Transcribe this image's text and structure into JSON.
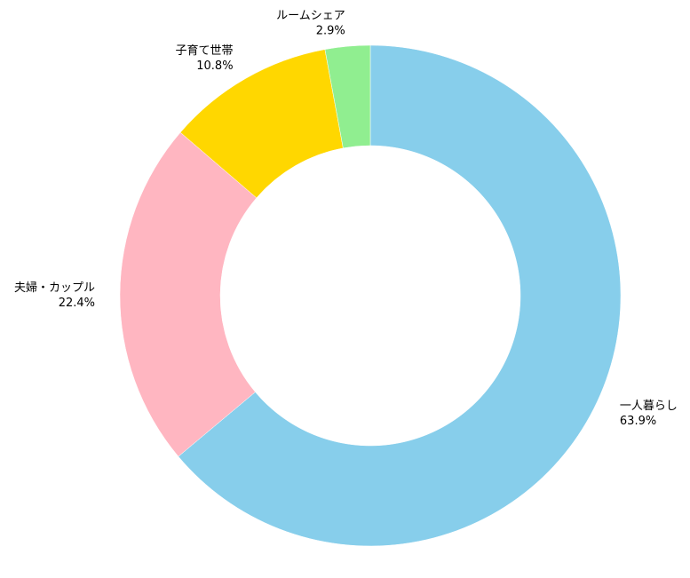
{
  "chart_data": {
    "type": "pie",
    "donut": true,
    "start_angle_deg": 90,
    "direction": "clockwise",
    "categories": [
      "一人暮らし",
      "夫婦・カップル",
      "子育て世帯",
      "ルームシェア"
    ],
    "values": [
      63.9,
      22.4,
      10.8,
      2.9
    ],
    "value_labels": [
      "63.9%",
      "22.4%",
      "10.8%",
      "2.9%"
    ],
    "colors": [
      "#87CEEB",
      "#FFB6C1",
      "#FFD700",
      "#90EE90"
    ],
    "title": "",
    "legend": "none"
  }
}
